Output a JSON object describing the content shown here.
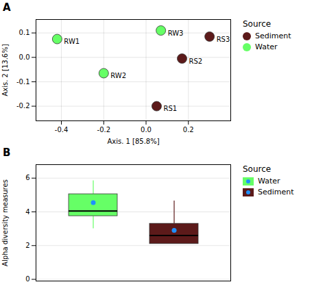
{
  "chart_data": [
    {
      "type": "scatter",
      "title": "A",
      "xlabel": "Axis. 1 [85.8%]",
      "ylabel": "Axis. 2 [13.6%]",
      "xlim": [
        -0.52,
        0.4
      ],
      "ylim": [
        -0.26,
        0.155
      ],
      "xticks": [
        -0.4,
        -0.2,
        {
          "value": 0.0,
          "label": "0.0"
        },
        0.2
      ],
      "yticks": [
        -0.2,
        -0.1,
        {
          "value": 0.0,
          "label": "0.0"
        },
        0.1
      ],
      "grid": true,
      "legend": "right",
      "legend_title": "Source",
      "series": [
        {
          "name": "Sediment",
          "color": "#5C1A1A",
          "x": [
            0.05,
            0.17,
            0.3
          ],
          "y": [
            -0.2,
            -0.005,
            0.085
          ],
          "labels": [
            "RS1",
            "RS2",
            "RS3"
          ]
        },
        {
          "name": "Water",
          "color": "#66FF66",
          "x": [
            -0.42,
            -0.2,
            0.07
          ],
          "y": [
            0.075,
            -0.065,
            0.11
          ],
          "labels": [
            "RW1",
            "RW2",
            "RW3"
          ]
        }
      ]
    },
    {
      "type": "box",
      "title": "B",
      "ylabel": "Alpha diversity measures",
      "ylim": [
        -0.1,
        6.8
      ],
      "yticks": [
        0,
        2,
        4,
        6
      ],
      "grid": "y",
      "tick_labels": "y",
      "legend": "right",
      "legend_title": "Source",
      "color": "#1E90FF",
      "series": [
        {
          "name": "Water",
          "color": "#66FF66",
          "median": 4.05,
          "q1": 3.75,
          "q3": 5.05,
          "whisker_low": 3.0,
          "whisker_high": 5.85,
          "mean": 4.55
        },
        {
          "name": "Sediment",
          "color": "#5C1A1A",
          "median": 2.6,
          "q1": 2.1,
          "q3": 3.3,
          "whisker_low": 2.1,
          "whisker_high": 4.65,
          "mean": 2.9
        }
      ]
    }
  ]
}
